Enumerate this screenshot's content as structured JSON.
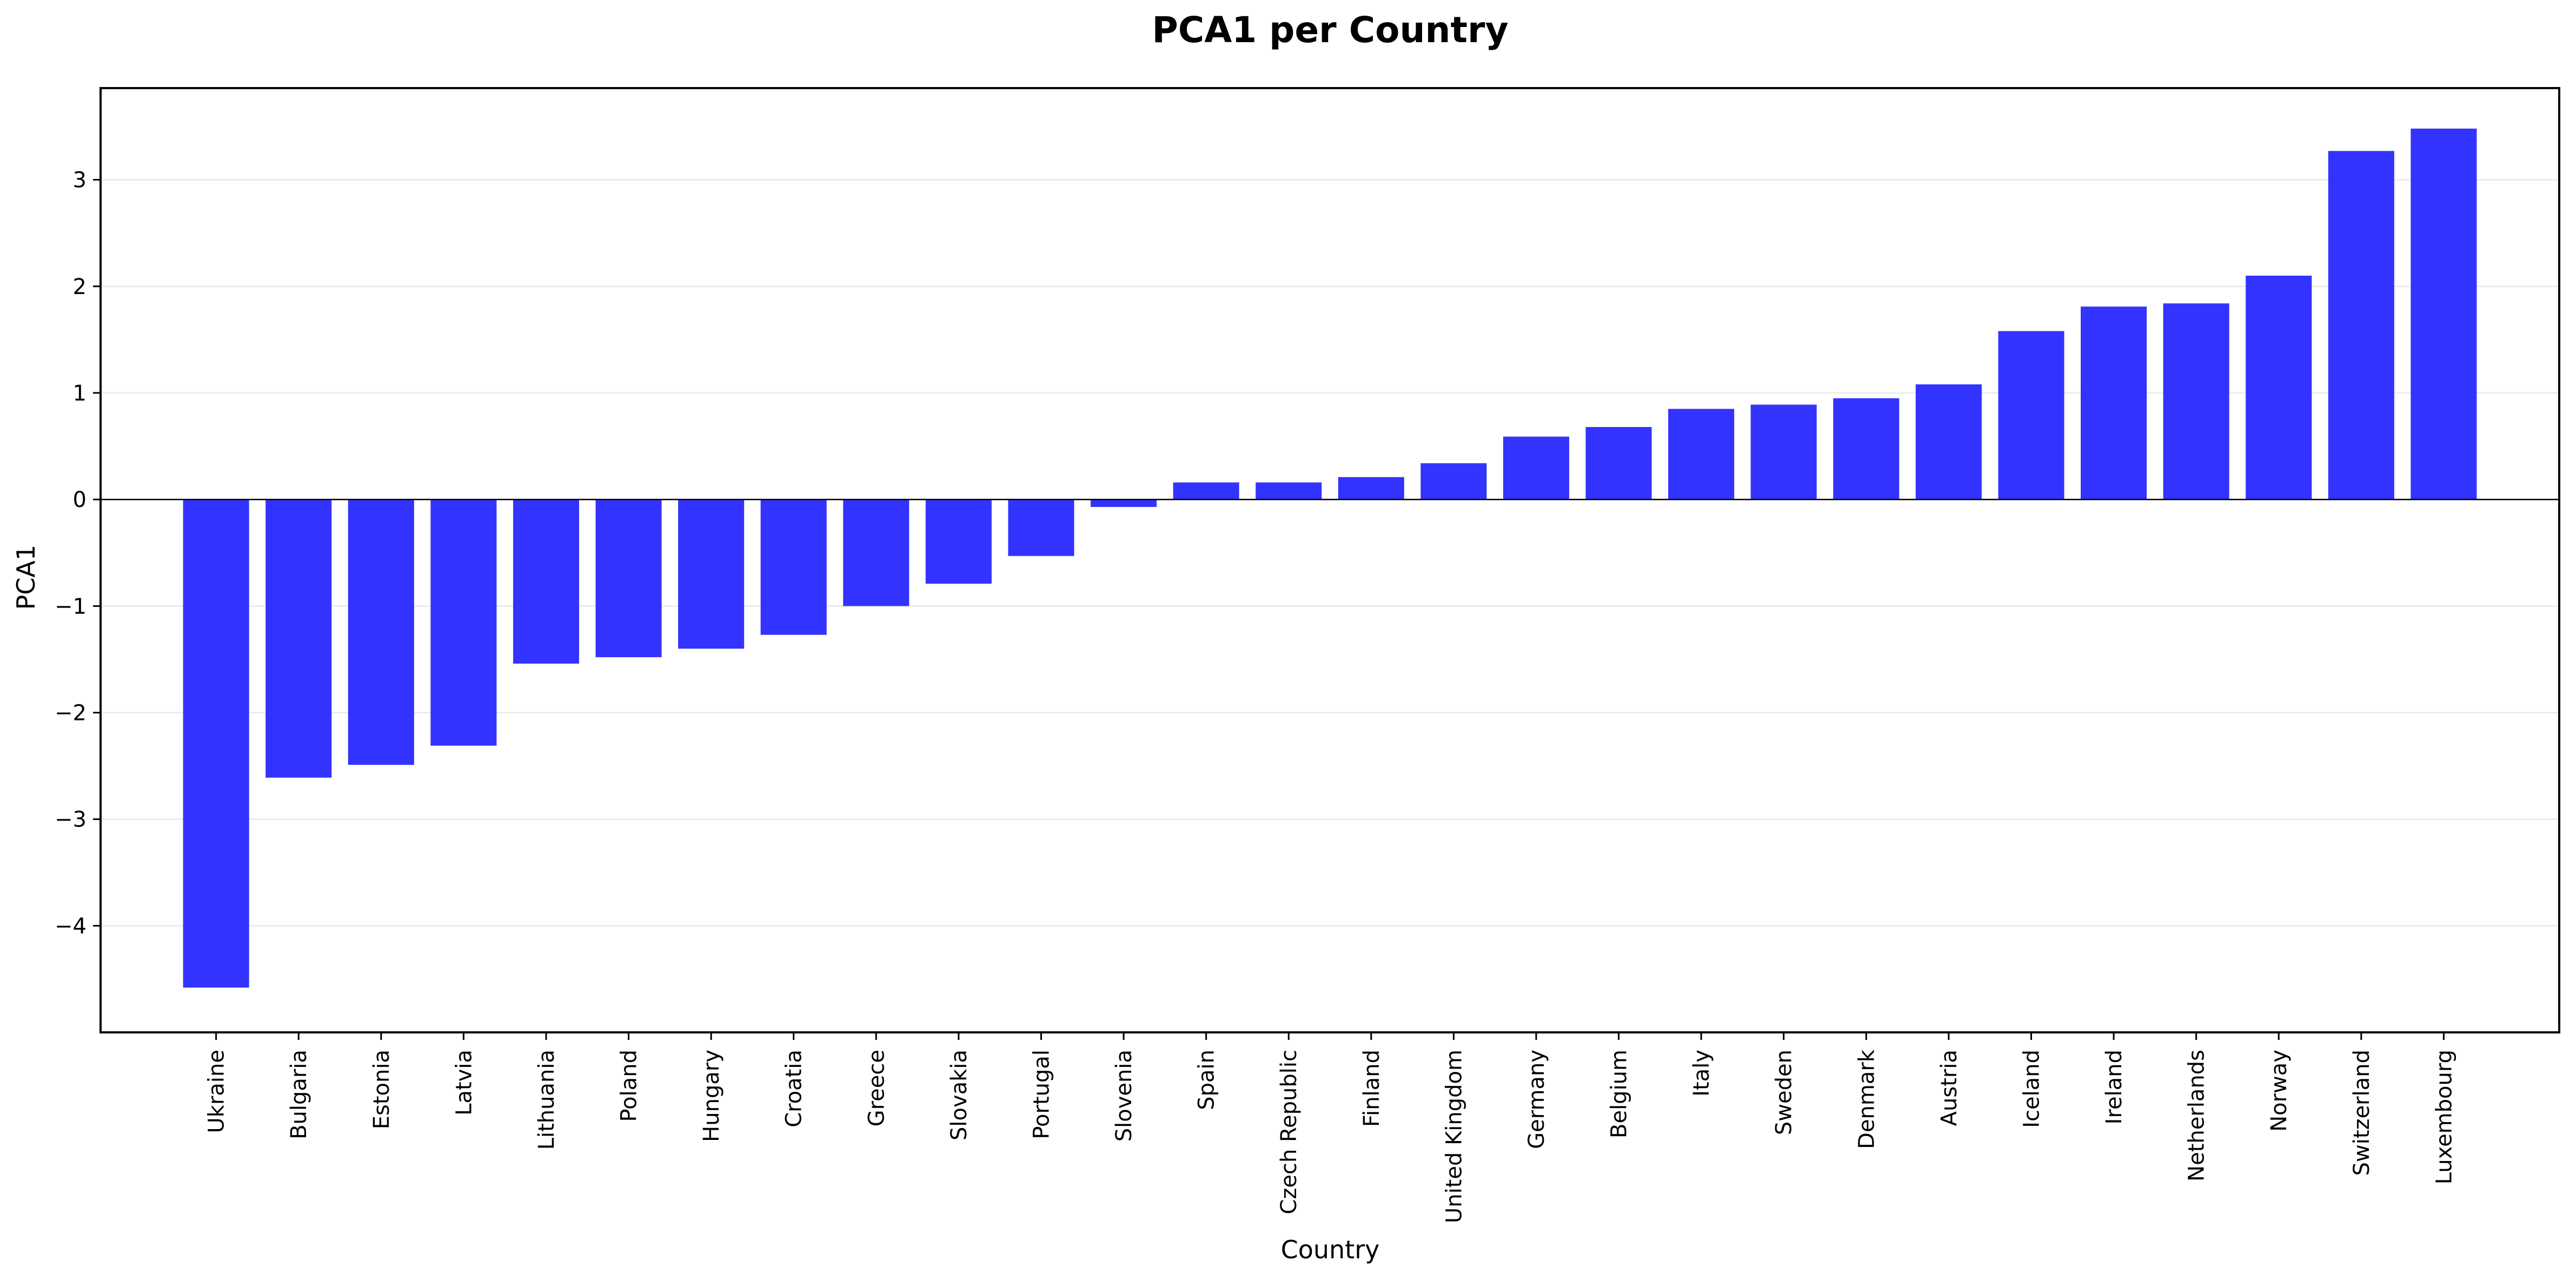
{
  "chart_data": {
    "type": "bar",
    "title": "PCA1 per Country",
    "xlabel": "Country",
    "ylabel": "PCA1",
    "categories": [
      "Ukraine",
      "Bulgaria",
      "Estonia",
      "Latvia",
      "Lithuania",
      "Poland",
      "Hungary",
      "Croatia",
      "Greece",
      "Slovakia",
      "Portugal",
      "Slovenia",
      "Spain",
      "Czech Republic",
      "Finland",
      "United Kingdom",
      "Germany",
      "Belgium",
      "Italy",
      "Sweden",
      "Denmark",
      "Austria",
      "Iceland",
      "Ireland",
      "Netherlands",
      "Norway",
      "Switzerland",
      "Luxembourg"
    ],
    "values": [
      -4.58,
      -2.61,
      -2.49,
      -2.31,
      -1.54,
      -1.48,
      -1.4,
      -1.27,
      -1.0,
      -0.79,
      -0.53,
      -0.07,
      0.16,
      0.16,
      0.21,
      0.34,
      0.59,
      0.68,
      0.85,
      0.89,
      0.95,
      1.08,
      1.58,
      1.81,
      1.84,
      2.1,
      3.27,
      3.48
    ],
    "ylim": [
      -5.0,
      3.86
    ],
    "yticks": [
      -4,
      -3,
      -2,
      -1,
      0,
      1,
      2,
      3
    ],
    "ytick_labels": [
      "−4",
      "−3",
      "−2",
      "−1",
      "0",
      "1",
      "2",
      "3"
    ],
    "bar_color": "#3333ff",
    "grid": true,
    "zero_line": true,
    "legend": "none"
  }
}
